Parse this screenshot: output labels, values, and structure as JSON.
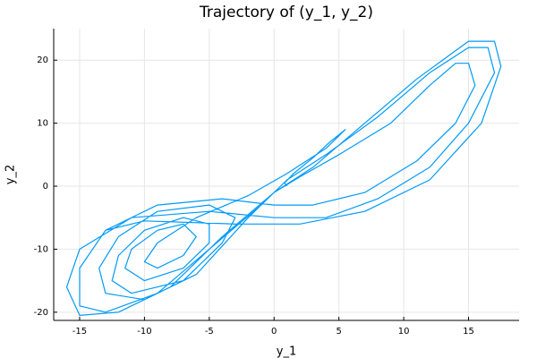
{
  "chart_data": {
    "type": "line",
    "title": "Trajectory of (y_1, y_2)",
    "xlabel": "y_1",
    "ylabel": "y_2",
    "x": [
      1,
      0.8,
      1.5,
      3,
      4.3,
      5.5,
      4,
      1,
      -2,
      -6,
      -9,
      -10,
      -9,
      -7,
      -6,
      -7,
      -9,
      -11,
      -11.5,
      -10,
      -7,
      -5,
      -5,
      -7,
      -10,
      -12,
      -12.5,
      -11,
      -7,
      -4,
      -3,
      -5,
      -9,
      -12,
      -13.5,
      -13,
      -10,
      -6,
      -2,
      0,
      2,
      5,
      9,
      12,
      14,
      15,
      15.5,
      14,
      11,
      7,
      3,
      0,
      -4,
      -9,
      -13,
      -15,
      -15,
      -13,
      -9,
      -5,
      -1,
      1,
      4,
      8,
      12,
      15,
      16.5,
      17,
      15,
      12,
      8,
      4,
      0,
      -5,
      -11,
      -15,
      -16,
      -15,
      -12,
      -8,
      -4,
      0,
      3,
      7,
      11,
      15,
      17,
      17.5,
      16,
      12,
      7,
      2,
      -3,
      -10,
      -13
    ],
    "y": [
      0,
      0.5,
      2,
      4.5,
      7,
      9,
      6,
      2,
      -1.5,
      -5,
      -9,
      -12,
      -13,
      -11,
      -8,
      -6,
      -7,
      -10,
      -13,
      -15,
      -13,
      -9,
      -6,
      -5,
      -7,
      -11,
      -15,
      -17,
      -15,
      -9,
      -5,
      -3,
      -4,
      -8,
      -13,
      -17,
      -18,
      -14,
      -5,
      -1,
      1.5,
      5,
      10,
      16,
      19.5,
      19.5,
      16,
      10,
      4,
      -1,
      -3,
      -3,
      -2,
      -3,
      -7,
      -13,
      -19,
      -20,
      -17,
      -10,
      -3,
      1,
      5,
      11,
      18,
      22,
      22,
      18,
      10,
      3,
      -2,
      -5,
      -5,
      -4,
      -5,
      -10,
      -16,
      -20.5,
      -20,
      -16,
      -8,
      -1,
      3,
      10,
      17,
      23,
      23,
      19,
      10,
      1,
      -4,
      -6,
      -6,
      -5.5,
      -7
    ],
    "color": "#009af9",
    "xlim": [
      -17,
      18.9
    ],
    "ylim": [
      -21.3,
      25
    ],
    "xticks": [
      -15,
      -10,
      -5,
      0,
      5,
      10,
      15
    ],
    "yticks": [
      -20,
      -10,
      0,
      10,
      20
    ],
    "grid": true
  }
}
